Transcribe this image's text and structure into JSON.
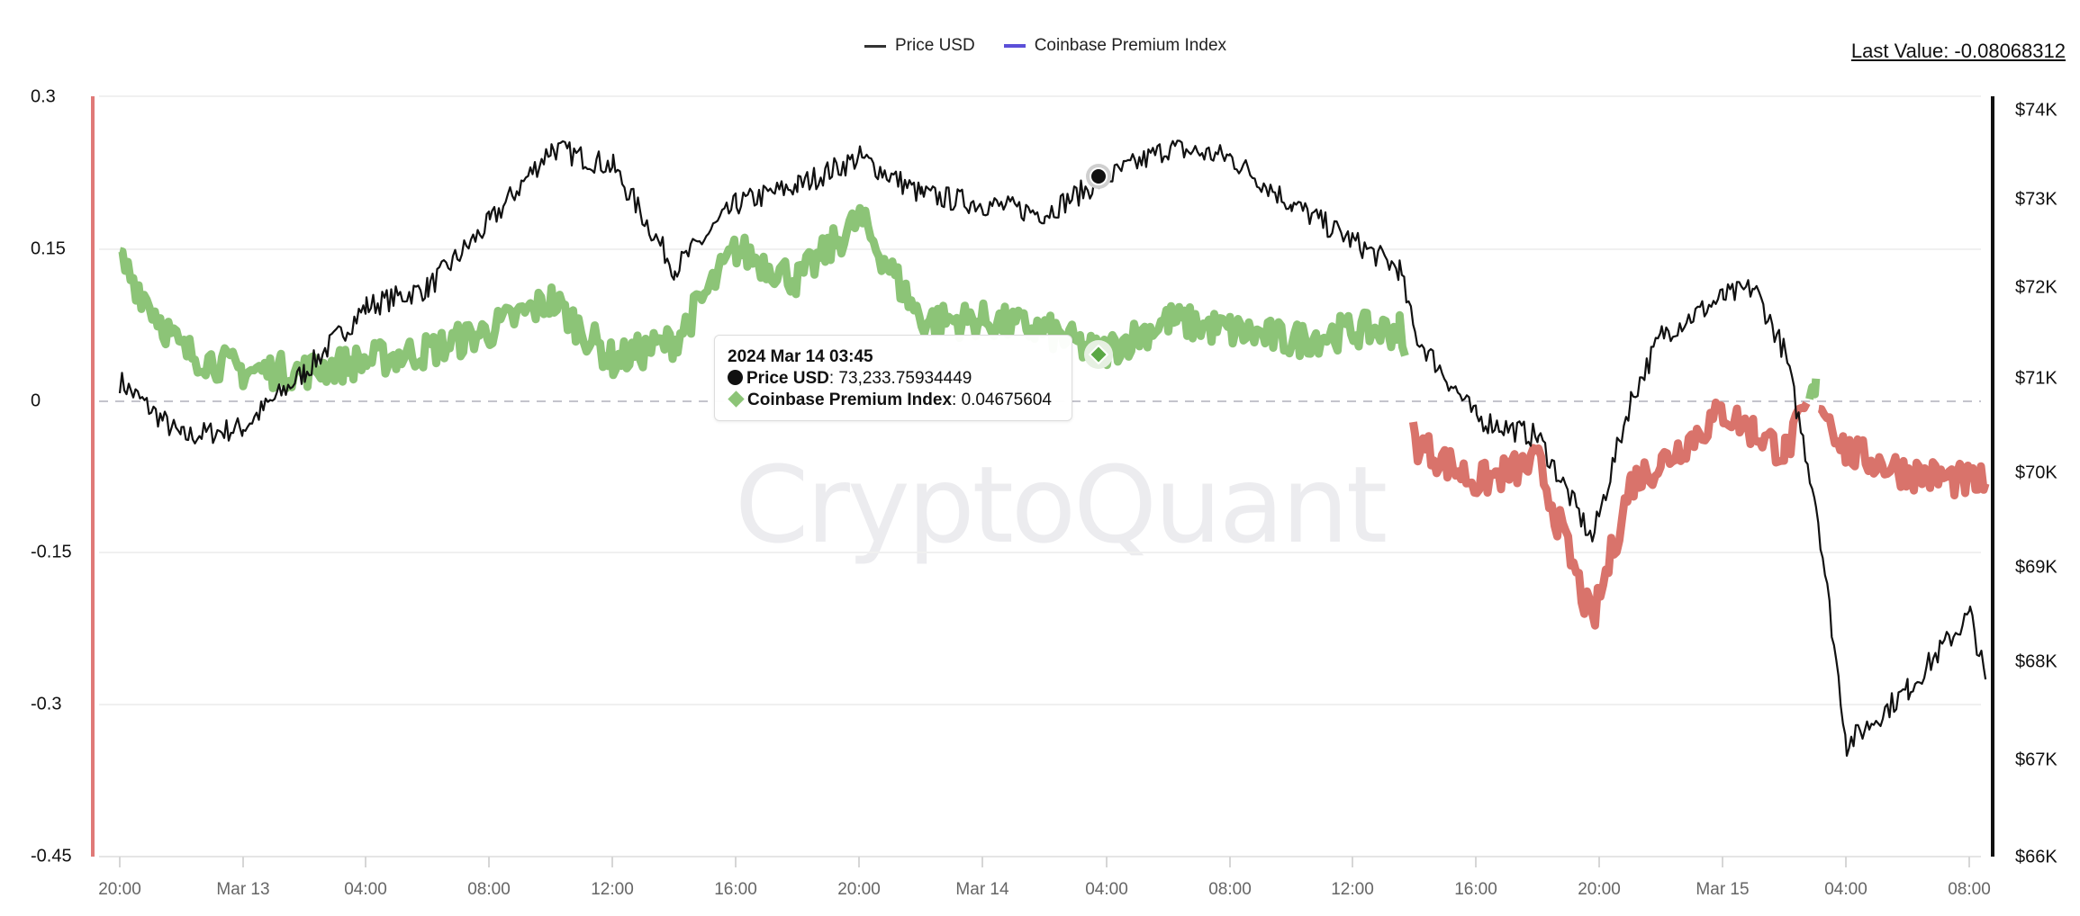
{
  "legend": {
    "items": [
      {
        "label": "Price USD",
        "color": "#333333"
      },
      {
        "label": "Coinbase Premium Index",
        "color": "#5b4fd8"
      }
    ]
  },
  "last_value": {
    "text": "Last Value: -0.08068312"
  },
  "watermark": "CryptoQuant",
  "tooltip": {
    "date": "2024 Mar 14 03:45",
    "price_label": "Price USD",
    "price_value": ": 73,233.75934449",
    "premium_label": "Coinbase Premium Index",
    "premium_value": ": 0.04675604"
  },
  "axes": {
    "left_ticks": [
      "0.3",
      "0.15",
      "0",
      "-0.15",
      "-0.3",
      "-0.45"
    ],
    "right_ticks": [
      "$74K",
      "$73K",
      "$72K",
      "$71K",
      "$70K",
      "$69K",
      "$68K",
      "$67K",
      "$66K"
    ],
    "x_ticks": [
      "20:00",
      "Mar 13",
      "04:00",
      "08:00",
      "12:00",
      "16:00",
      "20:00",
      "Mar 14",
      "04:00",
      "08:00",
      "12:00",
      "16:00",
      "20:00",
      "Mar 15",
      "04:00",
      "08:00"
    ]
  },
  "colors": {
    "positive": "#8cc477",
    "negative": "#d9736b",
    "price": "#111111",
    "zero_line": "#c4c4cc",
    "grid": "#f0f0f0",
    "left_axis": "#e07a78"
  },
  "chart_data": {
    "type": "line",
    "title": "",
    "legend_position": "top",
    "grid": true,
    "xlabel": "",
    "ylabel_left": "Coinbase Premium Index",
    "ylabel_right": "Price USD",
    "ylim_left": [
      -0.45,
      0.3
    ],
    "ylim_right": [
      66000,
      74000
    ],
    "x": [
      "Mar 12 20:00",
      "Mar 12 22:00",
      "Mar 13 00:00",
      "Mar 13 02:00",
      "Mar 13 04:00",
      "Mar 13 06:00",
      "Mar 13 08:00",
      "Mar 13 10:00",
      "Mar 13 12:00",
      "Mar 13 14:00",
      "Mar 13 16:00",
      "Mar 13 18:00",
      "Mar 13 20:00",
      "Mar 13 22:00",
      "Mar 14 00:00",
      "Mar 14 02:00",
      "Mar 14 03:45",
      "Mar 14 06:00",
      "Mar 14 08:00",
      "Mar 14 10:00",
      "Mar 14 12:00",
      "Mar 14 13:30",
      "Mar 14 14:00",
      "Mar 14 16:00",
      "Mar 14 18:00",
      "Mar 14 19:45",
      "Mar 14 21:00",
      "Mar 14 22:00",
      "Mar 15 00:00",
      "Mar 15 01:00",
      "Mar 15 02:00",
      "Mar 15 03:00",
      "Mar 15 04:00",
      "Mar 15 06:00",
      "Mar 15 08:00",
      "Mar 15 08:30"
    ],
    "series": [
      {
        "name": "Price USD",
        "axis": "right",
        "values": [
          71100,
          70500,
          70600,
          71200,
          71900,
          72100,
          72800,
          73600,
          73400,
          72300,
          73000,
          73200,
          73500,
          73100,
          73000,
          72900,
          73234,
          73600,
          73500,
          73000,
          72600,
          72300,
          71600,
          70700,
          70500,
          69400,
          70900,
          71600,
          72000,
          72100,
          71400,
          69800,
          67200,
          67800,
          68600,
          67900
        ]
      },
      {
        "name": "Coinbase Premium Index",
        "axis": "left",
        "values": [
          0.14,
          0.05,
          0.03,
          0.03,
          0.04,
          0.05,
          0.07,
          0.1,
          0.04,
          0.06,
          0.15,
          0.12,
          0.18,
          0.08,
          0.08,
          0.07,
          0.047,
          0.08,
          0.07,
          0.06,
          0.07,
          0.07,
          -0.04,
          -0.08,
          -0.06,
          -0.22,
          -0.08,
          -0.06,
          -0.01,
          -0.03,
          -0.05,
          0.01,
          -0.05,
          -0.07,
          -0.08,
          -0.081
        ]
      }
    ],
    "annotations": [
      {
        "type": "tooltip",
        "x": "2024 Mar 14 03:45",
        "Price USD": 73233.75934449,
        "Coinbase Premium Index": 0.04675604
      },
      {
        "type": "last_value",
        "Coinbase Premium Index": -0.08068312
      }
    ]
  }
}
